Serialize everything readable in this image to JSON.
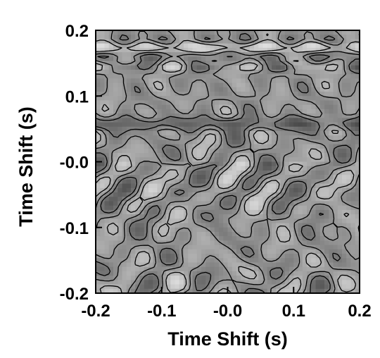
{
  "chart_data": {
    "type": "heatmap",
    "title": "",
    "xlabel": "Time Shift (s)",
    "ylabel": "Time Shift (s)",
    "xlim": [
      -0.2,
      0.2
    ],
    "ylim": [
      -0.2,
      0.2
    ],
    "xticks": [
      {
        "value": -0.2,
        "label": "-0.2"
      },
      {
        "value": -0.1,
        "label": "-0.1"
      },
      {
        "value": 0.0,
        "label": "-0.0"
      },
      {
        "value": 0.1,
        "label": "0.1"
      },
      {
        "value": 0.2,
        "label": "0.2"
      }
    ],
    "yticks": [
      {
        "value": -0.2,
        "label": "-0.2"
      },
      {
        "value": -0.1,
        "label": "-0.1"
      },
      {
        "value": 0.0,
        "label": "-0.0"
      },
      {
        "value": 0.1,
        "label": "0.1"
      },
      {
        "value": 0.2,
        "label": "0.2"
      }
    ],
    "colormap": "grayscale",
    "contours": true,
    "colorbar": false,
    "grid": false,
    "legend": false
  }
}
